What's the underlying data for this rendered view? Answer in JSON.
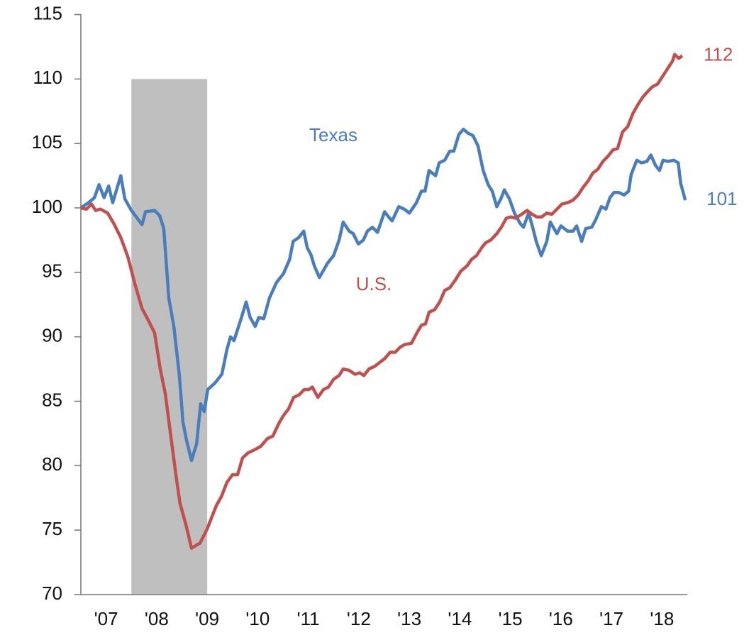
{
  "chart_data": {
    "type": "line",
    "xlim": [
      2007,
      2019
    ],
    "ylim": [
      70,
      115
    ],
    "yticks": [
      70,
      75,
      80,
      85,
      90,
      95,
      100,
      105,
      110,
      115
    ],
    "xticks": [
      {
        "value": 2007.5,
        "label": "'07"
      },
      {
        "value": 2008.5,
        "label": "'08"
      },
      {
        "value": 2009.5,
        "label": "'09"
      },
      {
        "value": 2010.5,
        "label": "'10"
      },
      {
        "value": 2011.5,
        "label": "'11"
      },
      {
        "value": 2012.5,
        "label": "'12"
      },
      {
        "value": 2013.5,
        "label": "'13"
      },
      {
        "value": 2014.5,
        "label": "'14"
      },
      {
        "value": 2015.5,
        "label": "'15"
      },
      {
        "value": 2016.5,
        "label": "'16"
      },
      {
        "value": 2017.5,
        "label": "'17"
      },
      {
        "value": 2018.5,
        "label": "'18"
      }
    ],
    "recession": {
      "start": 2008.0,
      "end": 2009.5,
      "top": 110,
      "color": "#bfbfbf"
    },
    "series": [
      {
        "name": "Texas",
        "color": "#4a7ebb",
        "end_label": "101",
        "x": [
          2007.0,
          2007.15,
          2007.27,
          2007.36,
          2007.46,
          2007.55,
          2007.63,
          2007.79,
          2007.87,
          2008.0,
          2008.21,
          2008.28,
          2008.46,
          2008.56,
          2008.64,
          2008.74,
          2008.84,
          2008.95,
          2009.02,
          2009.09,
          2009.19,
          2009.29,
          2009.37,
          2009.44,
          2009.51,
          2009.65,
          2009.79,
          2009.89,
          2009.96,
          2010.03,
          2010.17,
          2010.27,
          2010.35,
          2010.45,
          2010.52,
          2010.62,
          2010.73,
          2010.87,
          2011.01,
          2011.13,
          2011.2,
          2011.31,
          2011.41,
          2011.48,
          2011.55,
          2011.62,
          2011.72,
          2011.88,
          2012.0,
          2012.11,
          2012.19,
          2012.31,
          2012.39,
          2012.49,
          2012.59,
          2012.67,
          2012.77,
          2012.87,
          2013.01,
          2013.11,
          2013.16,
          2013.29,
          2013.4,
          2013.5,
          2013.64,
          2013.74,
          2013.81,
          2013.89,
          2014.02,
          2014.09,
          2014.2,
          2014.3,
          2014.38,
          2014.48,
          2014.57,
          2014.66,
          2014.76,
          2014.86,
          2014.96,
          2015.06,
          2015.14,
          2015.23,
          2015.31,
          2015.38,
          2015.48,
          2015.58,
          2015.69,
          2015.76,
          2015.86,
          2015.94,
          2016.01,
          2016.11,
          2016.22,
          2016.29,
          2016.42,
          2016.5,
          2016.63,
          2016.74,
          2016.81,
          2016.91,
          2016.99,
          2017.11,
          2017.19,
          2017.3,
          2017.39,
          2017.47,
          2017.55,
          2017.64,
          2017.75,
          2017.84,
          2017.89,
          2018.0,
          2018.09,
          2018.2,
          2018.28,
          2018.37,
          2018.45,
          2018.52,
          2018.62,
          2018.73,
          2018.82,
          2018.87,
          2018.96
        ],
        "values": [
          100,
          100.4,
          100.8,
          101.8,
          100.8,
          101.7,
          100.4,
          102.5,
          100.7,
          99.8,
          98.7,
          99.7,
          99.8,
          99.4,
          98.4,
          93,
          90.8,
          87,
          83.4,
          82,
          80.4,
          81.7,
          84.8,
          84.2,
          85.9,
          86.4,
          87.1,
          89,
          90,
          89.7,
          91.4,
          92.7,
          91.5,
          90.8,
          91.5,
          91.4,
          93,
          94.2,
          94.9,
          96,
          97.4,
          97.7,
          98.2,
          96.9,
          96.4,
          95.5,
          94.6,
          95.7,
          96.3,
          97.5,
          98.9,
          98.2,
          98,
          97.2,
          97.5,
          98.2,
          98.5,
          98.1,
          99.7,
          99.2,
          99,
          100.1,
          99.9,
          99.6,
          100.4,
          101.3,
          101.3,
          102.9,
          102.5,
          103.5,
          103.7,
          104.4,
          104.4,
          105.7,
          106.1,
          105.8,
          105.6,
          104.8,
          102.9,
          101.8,
          101.3,
          100.1,
          100.7,
          101.4,
          100.7,
          99.6,
          98.8,
          98.5,
          99.6,
          98.5,
          97.4,
          96.3,
          97.4,
          98.9,
          98,
          98.6,
          98.2,
          98.2,
          98.6,
          97.4,
          98.4,
          98.5,
          99.1,
          100.1,
          99.9,
          100.8,
          101.2,
          101.2,
          101,
          101.3,
          102.6,
          103.7,
          103.5,
          103.6,
          104.1,
          103.3,
          102.9,
          103.7,
          103.6,
          103.7,
          103.5,
          101.9,
          100.6
        ]
      },
      {
        "name": "U.S.",
        "color": "#c0504d",
        "end_label": "112",
        "x": [
          2007.0,
          2007.11,
          2007.21,
          2007.29,
          2007.39,
          2007.53,
          2007.65,
          2007.79,
          2007.93,
          2008.07,
          2008.21,
          2008.32,
          2008.46,
          2008.57,
          2008.67,
          2008.77,
          2008.88,
          2008.96,
          2009.08,
          2009.19,
          2009.36,
          2009.5,
          2009.58,
          2009.68,
          2009.78,
          2009.89,
          2010.0,
          2010.1,
          2010.2,
          2010.31,
          2010.42,
          2010.56,
          2010.69,
          2010.8,
          2010.92,
          2011.01,
          2011.11,
          2011.21,
          2011.32,
          2011.42,
          2011.51,
          2011.58,
          2011.69,
          2011.8,
          2011.9,
          2012.0,
          2012.11,
          2012.19,
          2012.31,
          2012.42,
          2012.52,
          2012.6,
          2012.7,
          2012.81,
          2012.91,
          2013.01,
          2013.12,
          2013.22,
          2013.32,
          2013.41,
          2013.54,
          2013.65,
          2013.74,
          2013.82,
          2013.89,
          2014.0,
          2014.1,
          2014.2,
          2014.3,
          2014.41,
          2014.52,
          2014.64,
          2014.73,
          2014.83,
          2014.93,
          2015.01,
          2015.11,
          2015.23,
          2015.32,
          2015.42,
          2015.51,
          2015.6,
          2015.72,
          2015.83,
          2015.93,
          2016.02,
          2016.12,
          2016.22,
          2016.32,
          2016.42,
          2016.52,
          2016.63,
          2016.74,
          2016.84,
          2016.94,
          2017.04,
          2017.13,
          2017.23,
          2017.33,
          2017.43,
          2017.53,
          2017.62,
          2017.72,
          2017.82,
          2017.92,
          2018.02,
          2018.12,
          2018.21,
          2018.31,
          2018.41,
          2018.51,
          2018.61,
          2018.71,
          2018.75,
          2018.83,
          2018.9
        ],
        "values": [
          100,
          99.9,
          100.3,
          99.8,
          99.9,
          99.6,
          98.8,
          97.7,
          96.2,
          94.1,
          92.2,
          91.4,
          90.3,
          87.5,
          85.6,
          82.6,
          79.3,
          77.1,
          75.4,
          73.6,
          74,
          75.1,
          75.9,
          76.9,
          77.6,
          78.7,
          79.3,
          79.3,
          80.6,
          81,
          81.2,
          81.5,
          82.1,
          82.3,
          83.3,
          83.9,
          84.4,
          85.3,
          85.5,
          85.9,
          85.9,
          86.1,
          85.3,
          85.9,
          86.1,
          86.7,
          87,
          87.5,
          87.4,
          87.1,
          87.2,
          87,
          87.5,
          87.7,
          88,
          88.3,
          88.8,
          88.8,
          89.2,
          89.4,
          89.5,
          90.3,
          90.9,
          91,
          91.9,
          92.1,
          92.7,
          93.6,
          93.8,
          94.4,
          95.1,
          95.5,
          96,
          96.3,
          96.9,
          97.3,
          97.5,
          98,
          98.5,
          99.2,
          99.3,
          99.2,
          99.5,
          99.8,
          99.5,
          99.3,
          99.3,
          99.6,
          99.5,
          99.9,
          100.3,
          100.4,
          100.6,
          101,
          101.6,
          102.1,
          102.7,
          103,
          103.6,
          104,
          104.5,
          104.6,
          105.9,
          106.3,
          107.3,
          108,
          108.6,
          109,
          109.4,
          109.6,
          110.2,
          110.8,
          111.4,
          111.9,
          111.6,
          111.8
        ]
      }
    ]
  }
}
